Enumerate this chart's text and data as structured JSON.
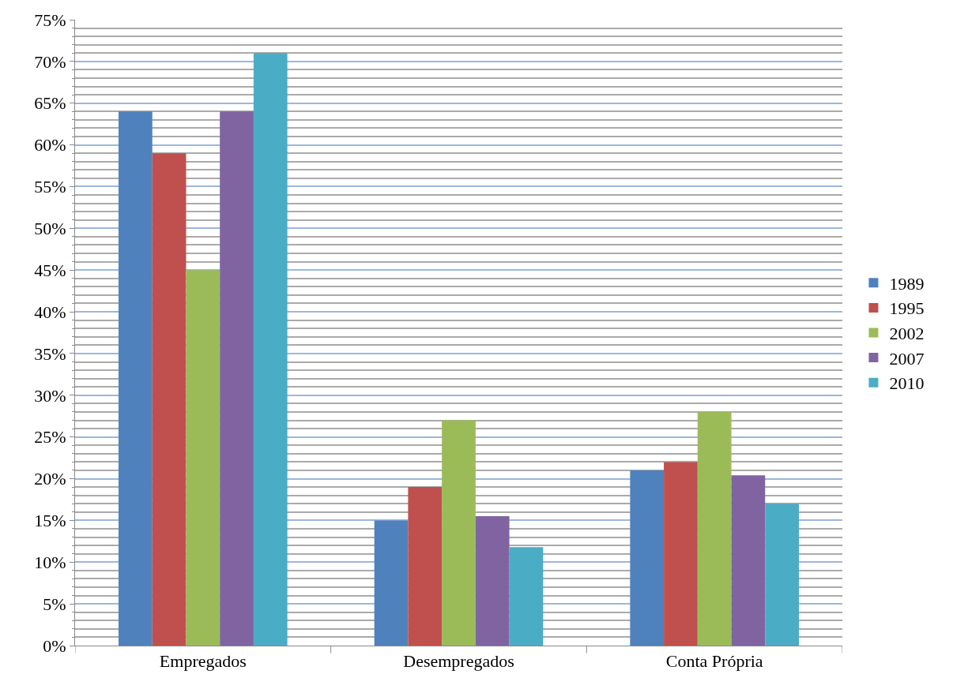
{
  "chart_data": {
    "type": "bar",
    "categories": [
      "Empregados",
      "Desempregados",
      "Conta Própria"
    ],
    "series": [
      {
        "name": "1989",
        "color": "#4f81bd",
        "values": [
          64,
          15,
          21
        ]
      },
      {
        "name": "1995",
        "color": "#c0504d",
        "values": [
          59,
          19,
          22
        ]
      },
      {
        "name": "2002",
        "color": "#9bbb59",
        "values": [
          45,
          27,
          28
        ]
      },
      {
        "name": "2007",
        "color": "#8064a2",
        "values": [
          64,
          15.5,
          20.4
        ]
      },
      {
        "name": "2010",
        "color": "#4bacc6",
        "values": [
          71,
          11.8,
          17
        ]
      }
    ],
    "ylim": [
      0,
      75
    ],
    "yticks": [
      {
        "value": 0,
        "label": "0%"
      },
      {
        "value": 5,
        "label": "5%"
      },
      {
        "value": 10,
        "label": "10%"
      },
      {
        "value": 15,
        "label": "15%"
      },
      {
        "value": 20,
        "label": "20%"
      },
      {
        "value": 25,
        "label": "25%"
      },
      {
        "value": 30,
        "label": "30%"
      },
      {
        "value": 35,
        "label": "35%"
      },
      {
        "value": 40,
        "label": "40%"
      },
      {
        "value": 45,
        "label": "45%"
      },
      {
        "value": 50,
        "label": "50%"
      },
      {
        "value": 55,
        "label": "55%"
      },
      {
        "value": 60,
        "label": "60%"
      },
      {
        "value": 65,
        "label": "65%"
      },
      {
        "value": 70,
        "label": "70%"
      },
      {
        "value": 75,
        "label": "75%"
      }
    ],
    "grid": "y",
    "legend": "right"
  }
}
